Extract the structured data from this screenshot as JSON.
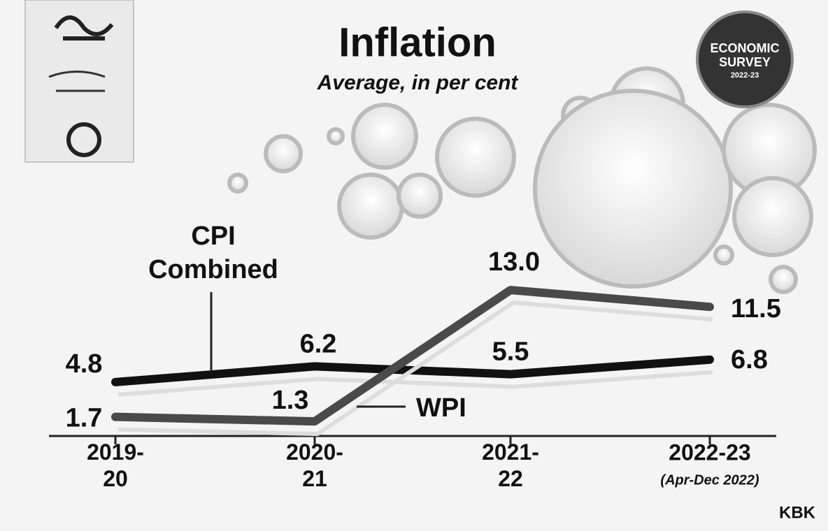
{
  "chart_data": {
    "type": "line",
    "title": "Inflation",
    "subtitle": "Average, in per cent",
    "badge": [
      "ECONOMIC",
      "SURVEY",
      "2022-23"
    ],
    "categories": [
      "2019-20",
      "2020-21",
      "2021-22",
      "2022-23"
    ],
    "category_note": "(Apr-Dec 2022)",
    "series": [
      {
        "name": "CPI Combined",
        "color": "#111111",
        "values": [
          4.8,
          6.2,
          5.5,
          6.8
        ]
      },
      {
        "name": "WPI",
        "color": "#4a4a4a",
        "values": [
          1.7,
          1.3,
          13.0,
          11.5
        ],
        "value_labels": [
          "1.7",
          "1.3",
          "13.0",
          "11.5"
        ]
      }
    ],
    "credit": "KBK"
  }
}
